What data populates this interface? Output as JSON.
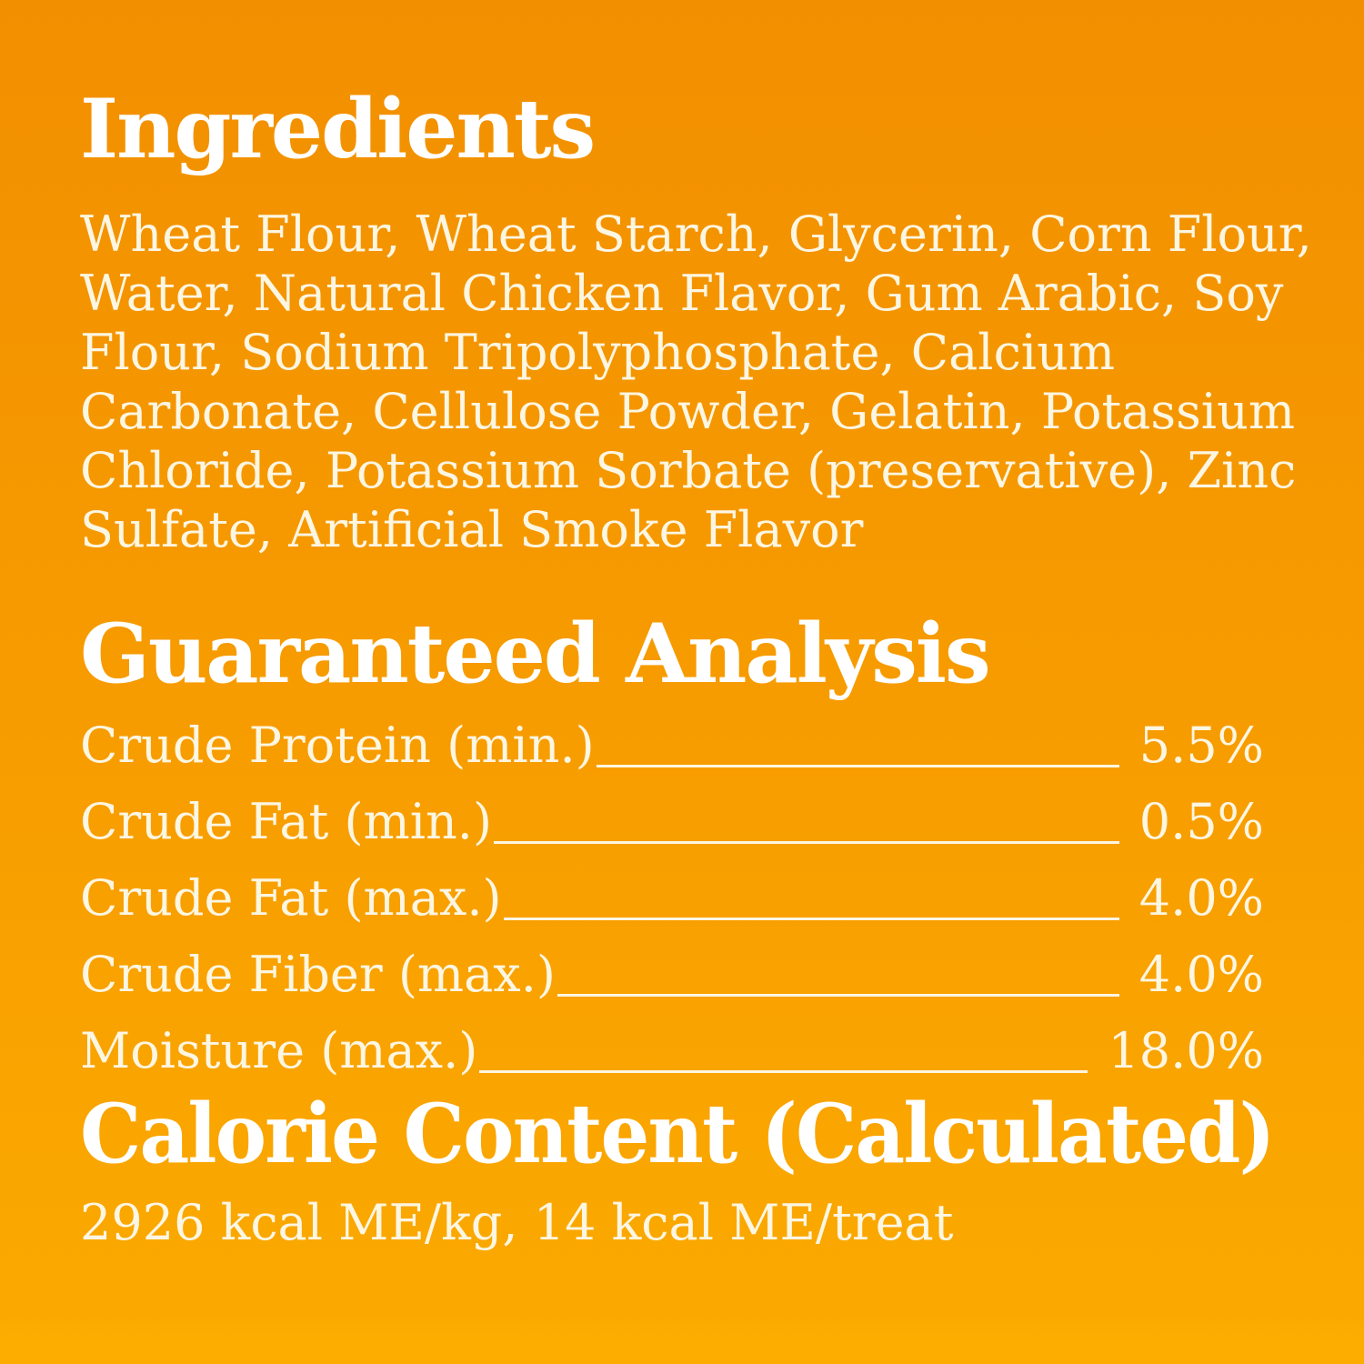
{
  "colors": {
    "bg_top": "#F28F00",
    "bg_mid": "#F79C00",
    "bg_bottom": "#FBA900",
    "bg_band": "#FCAD00",
    "heading_color": "#FFFFFF",
    "body_color": "#FCF6E2"
  },
  "ingredients": {
    "heading": "Ingredients",
    "text": "Wheat Flour, Wheat Starch, Glycerin, Corn Flour, Water, Natural Chicken Flavor, Gum Arabic, Soy Flour, Sodium Tripolyphosphate, Calcium Carbonate, Cellulose Powder, Gelatin, Potassium Chloride, Potassium Sorbate (preservative), Zinc Sulfate, Artificial Smoke Flavor",
    "lines": [
      "Wheat Flour, Wheat Starch, Glycerin, Corn Flour,",
      "Water, Natural Chicken Flavor, Gum Arabic, Soy",
      "Flour, Sodium Tripolyphosphate, Calcium",
      "Carbonate, Cellulose Powder, Gelatin, Potassium",
      "Chloride, Potassium Sorbate (preservative), Zinc",
      "Sulfate, Artificial Smoke Flavor"
    ]
  },
  "analysis": {
    "heading": "Guaranteed Analysis",
    "rows": [
      {
        "label": "Crude Protein (min.)",
        "value": "5.5%"
      },
      {
        "label": "Crude Fat (min.)",
        "value": "0.5%"
      },
      {
        "label": "Crude Fat (max.)",
        "value": "4.0%"
      },
      {
        "label": "Crude Fiber (max.)",
        "value": "4.0%"
      },
      {
        "label": "Moisture (max.)",
        "value": "18.0%"
      }
    ]
  },
  "calories": {
    "heading": "Calorie Content (Calculated)",
    "text": "2926 kcal ME/kg, 14 kcal ME/treat"
  }
}
